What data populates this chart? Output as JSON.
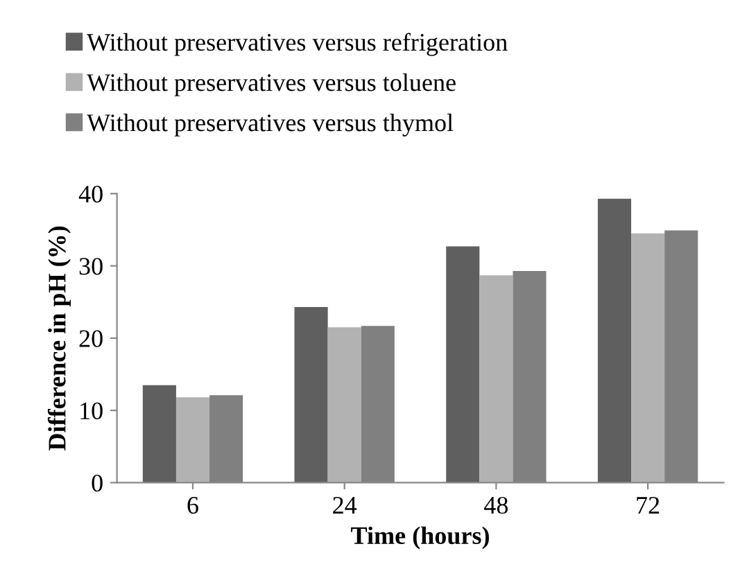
{
  "chart_data": {
    "type": "bar",
    "xlabel": "Time (hours)",
    "ylabel": "Difference in pH (%)",
    "categories": [
      "6",
      "24",
      "48",
      "72"
    ],
    "series": [
      {
        "name": "Without preservatives versus refrigeration",
        "color": "#5f5f5f",
        "values": [
          13.5,
          24.3,
          32.7,
          39.3
        ]
      },
      {
        "name": "Without preservatives versus toluene",
        "color": "#b2b2b2",
        "values": [
          11.8,
          21.5,
          28.7,
          34.5
        ]
      },
      {
        "name": "Without preservatives versus thymol",
        "color": "#808080",
        "values": [
          12.1,
          21.7,
          29.3,
          34.9
        ]
      }
    ],
    "ylim": [
      0,
      40
    ],
    "yticks": [
      0,
      10,
      20,
      30,
      40
    ],
    "grid": false,
    "legend": "top"
  }
}
